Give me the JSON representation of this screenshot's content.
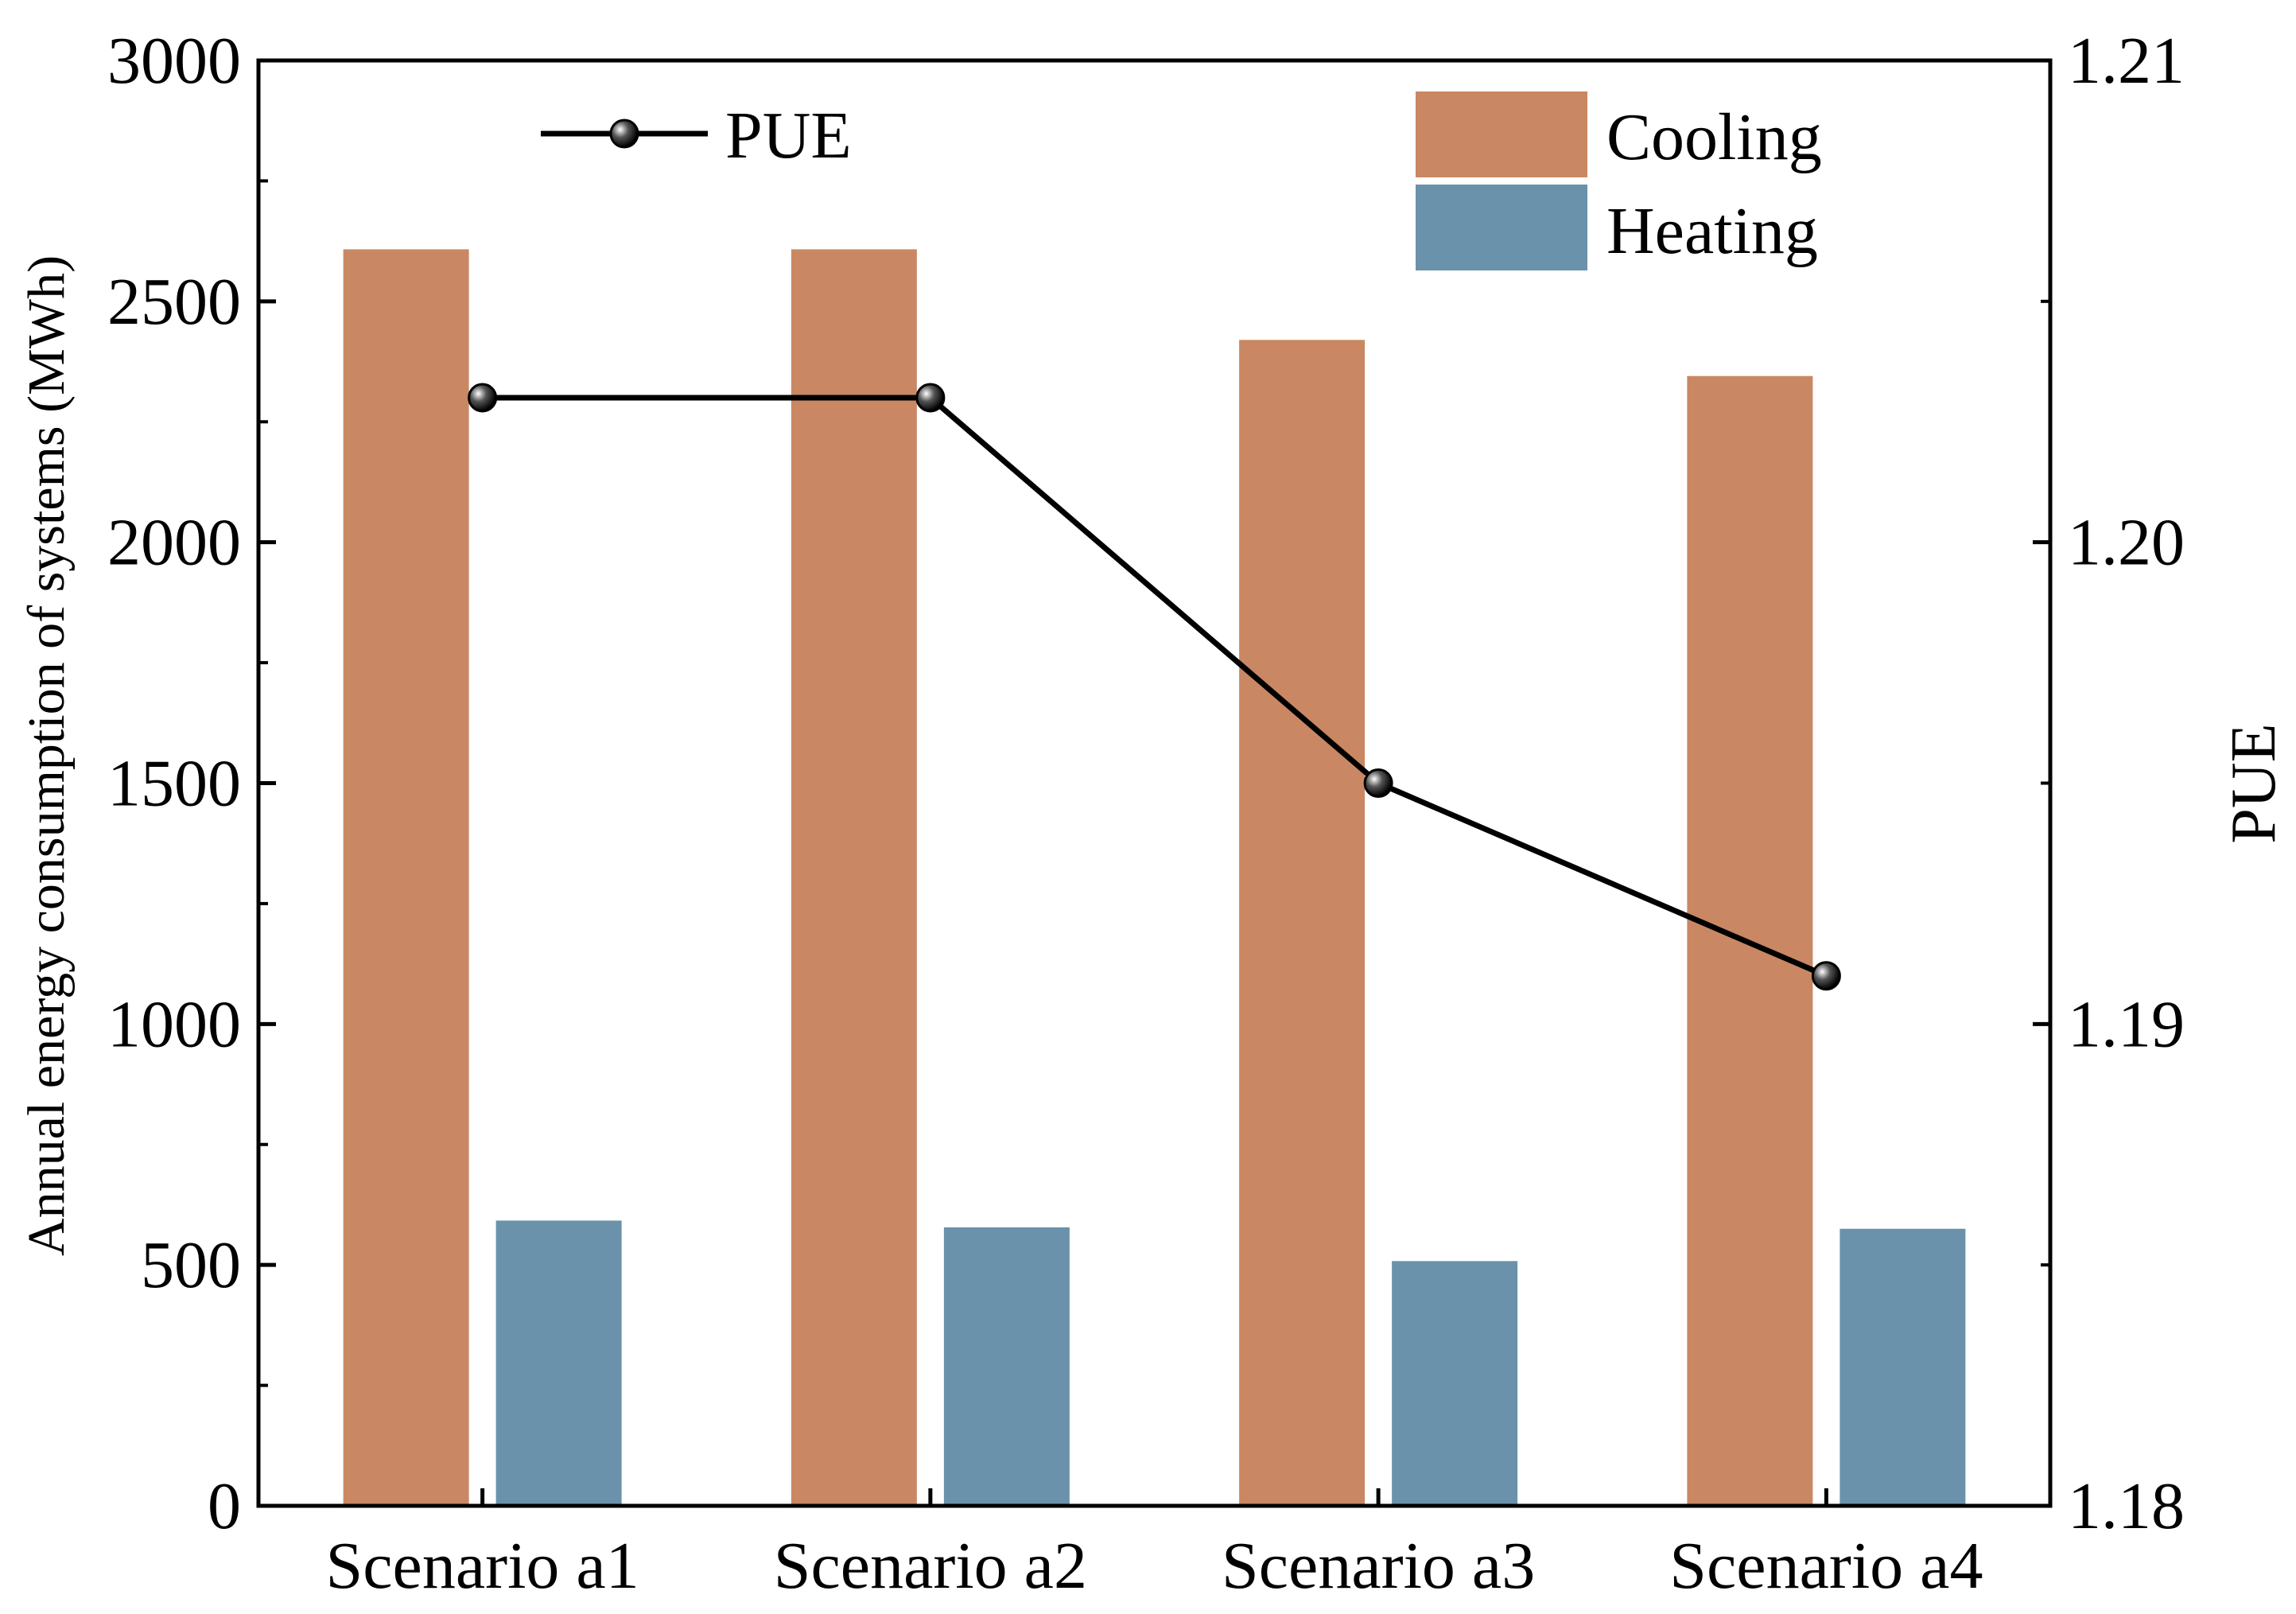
{
  "chart_data": {
    "type": "bar",
    "categories": [
      "Scenario a1",
      "Scenario a2",
      "Scenario a3",
      "Scenario a4"
    ],
    "series": [
      {
        "name": "Cooling",
        "axis": "left",
        "values": [
          2608,
          2608,
          2420,
          2345
        ],
        "color": "#C98863"
      },
      {
        "name": "Heating",
        "axis": "left",
        "values": [
          592,
          578,
          508,
          575
        ],
        "color": "#6A92AB"
      },
      {
        "name": "PUE",
        "axis": "right",
        "kind": "line",
        "values": [
          1.203,
          1.203,
          1.195,
          1.191
        ],
        "color": "#000000"
      }
    ],
    "ylabel": "Annual energy consumption of systems (MWh)",
    "y2label": "PUE",
    "ylim": [
      0,
      3000
    ],
    "y2lim": [
      1.18,
      1.21
    ],
    "yticks": [
      "0",
      "500",
      "1000",
      "1500",
      "2000",
      "2500",
      "3000"
    ],
    "y2ticks": [
      "1.18",
      "1.19",
      "1.20",
      "1.21"
    ],
    "legend": {
      "line_label": "PUE",
      "bar_labels": [
        "Cooling",
        "Heating"
      ],
      "placement": "top"
    },
    "grid": false
  }
}
